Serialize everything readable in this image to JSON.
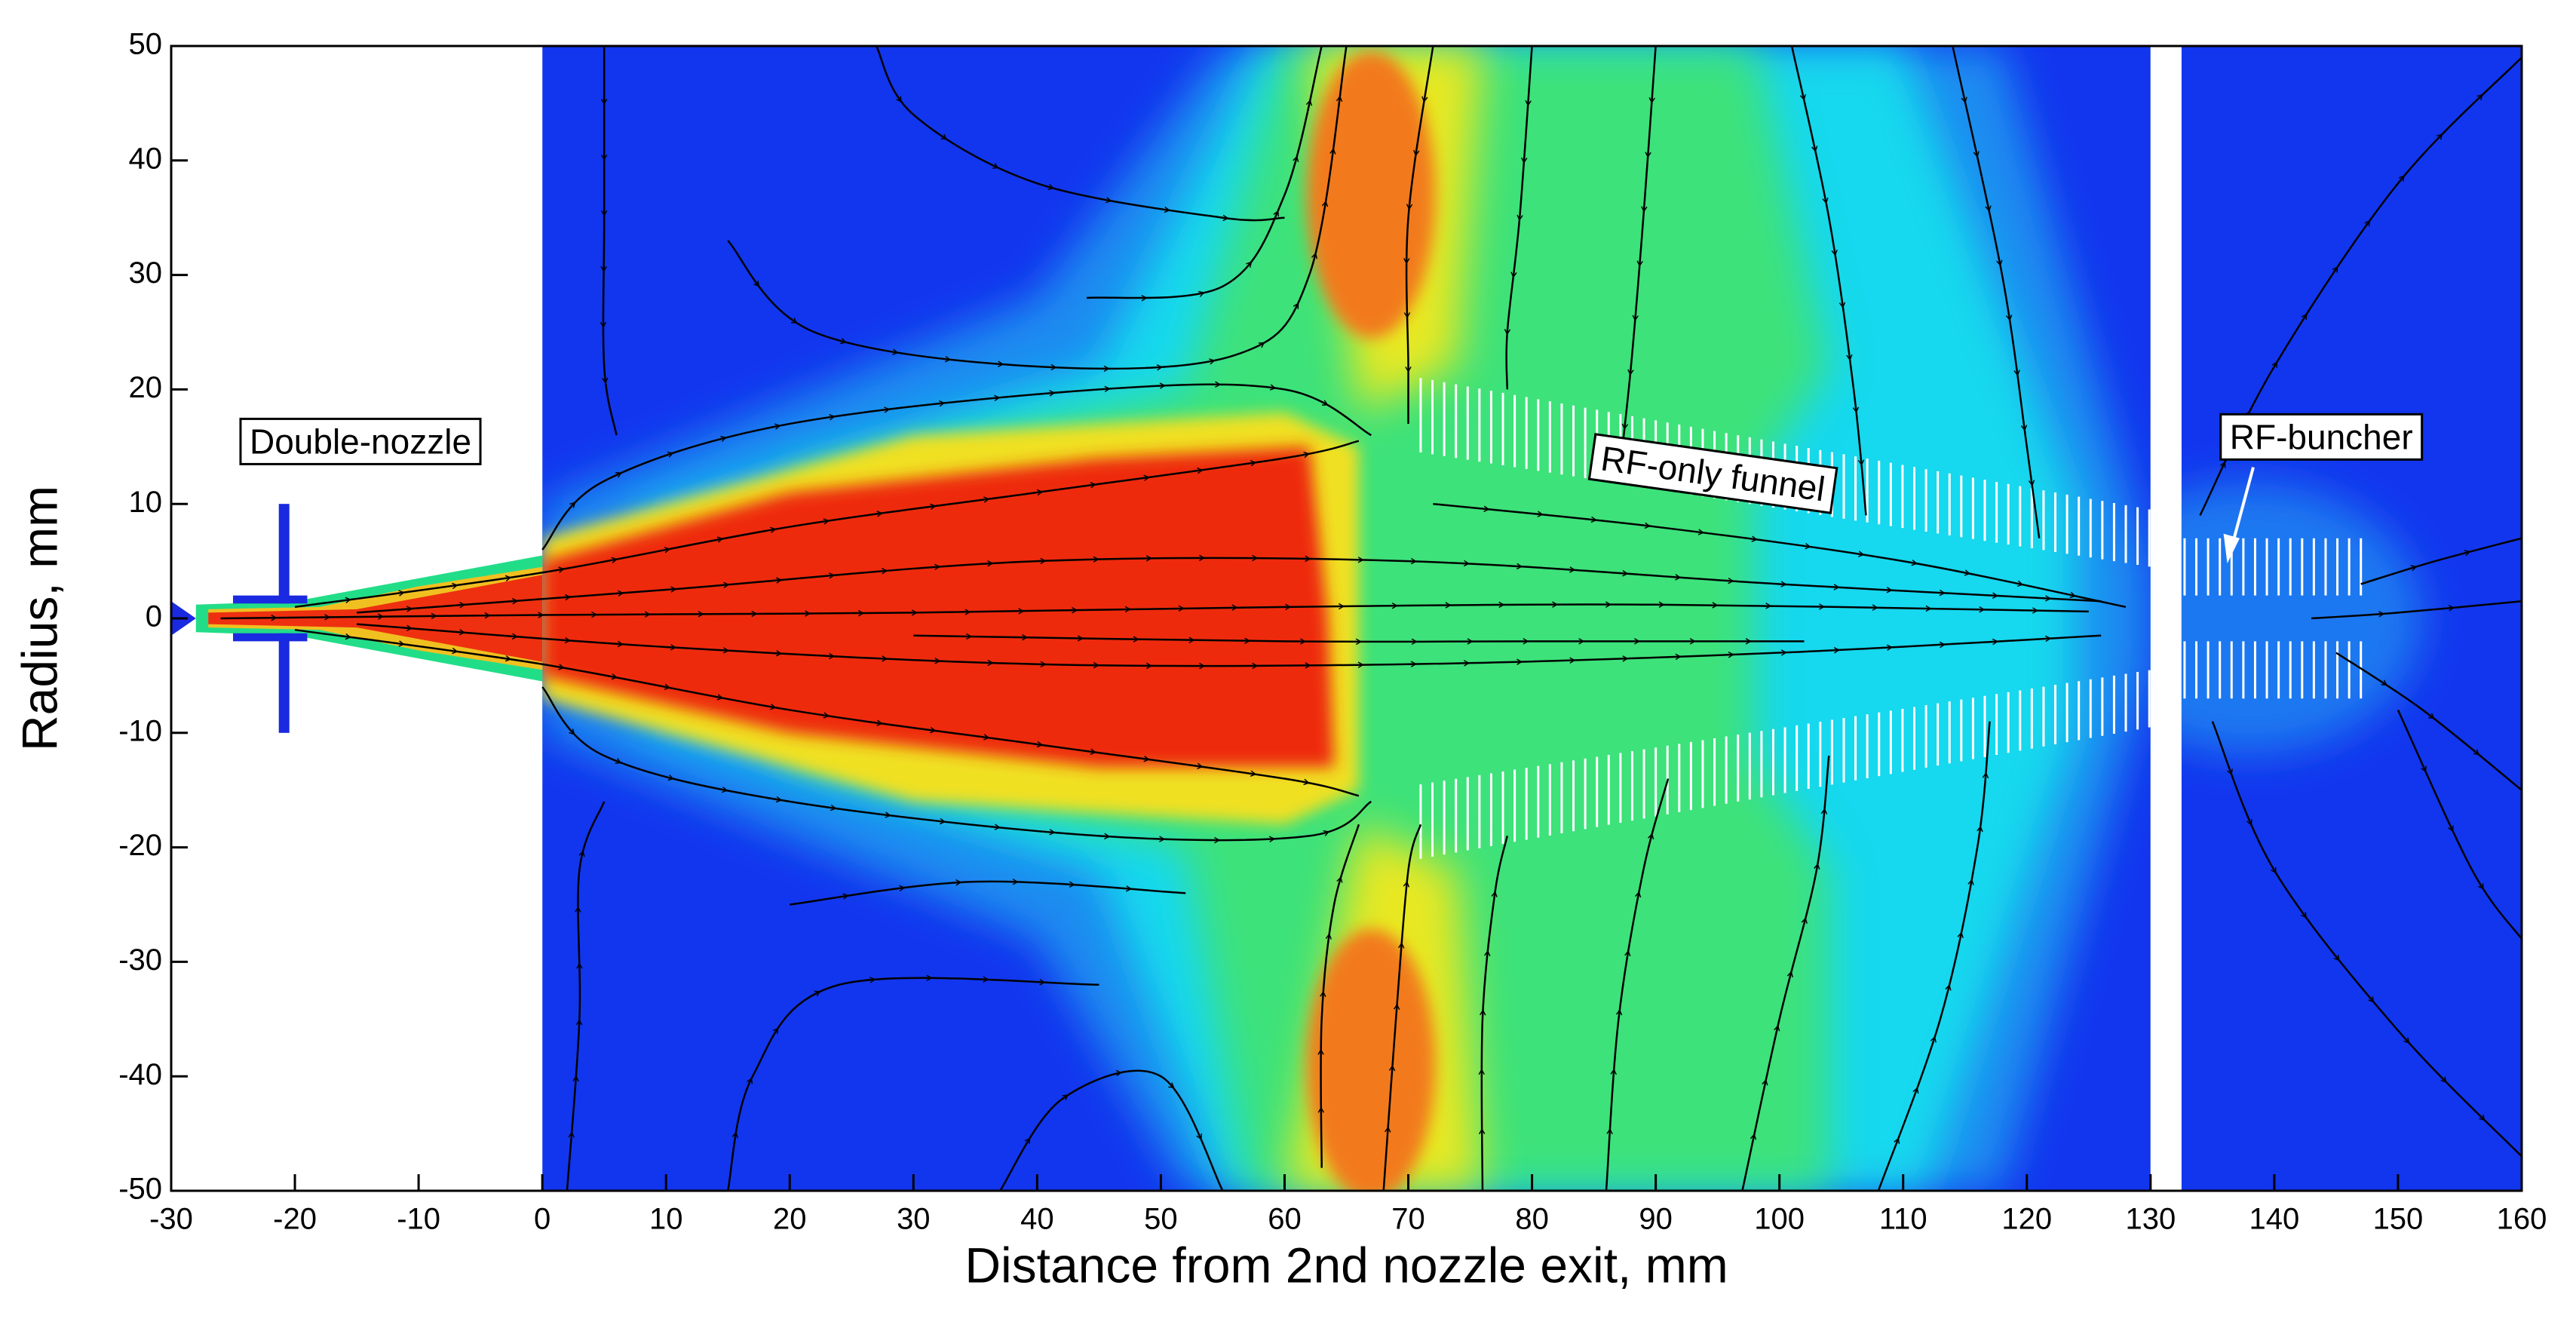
{
  "chart_data": {
    "type": "contour",
    "xlabel": "Distance from 2nd nozzle exit,  mm",
    "ylabel": "Radius,  mm",
    "xlim": [
      -30,
      160
    ],
    "ylim": [
      -50,
      50
    ],
    "xticks": [
      -30,
      -20,
      -10,
      0,
      10,
      20,
      30,
      40,
      50,
      60,
      70,
      80,
      90,
      100,
      110,
      120,
      130,
      140,
      150,
      160
    ],
    "yticks": [
      -50,
      -40,
      -30,
      -20,
      -10,
      0,
      10,
      20,
      30,
      40,
      50
    ],
    "annotations": [
      "Double-nozzle",
      "RF-only funnel",
      "RF-buncher"
    ]
  }
}
